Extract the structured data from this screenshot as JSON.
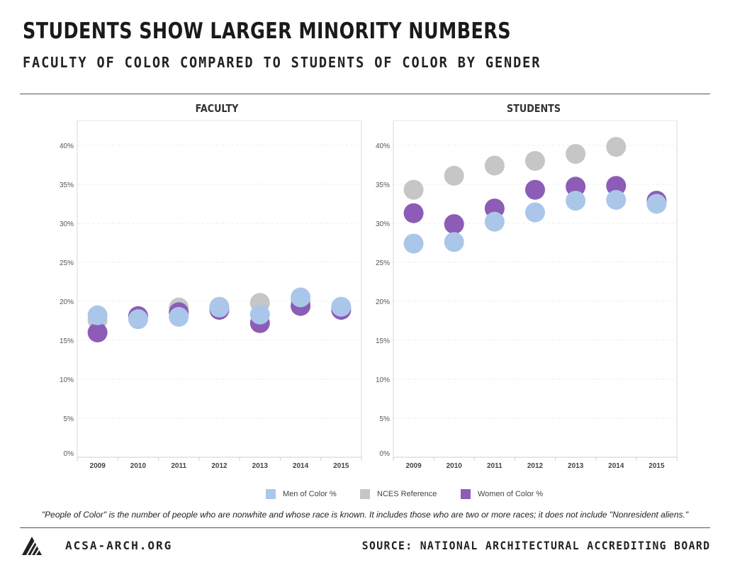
{
  "header": {
    "title": "STUDENTS SHOW LARGER MINORITY NUMBERS",
    "subtitle": "FACULTY OF COLOR COMPARED TO STUDENTS OF COLOR BY GENDER"
  },
  "colors": {
    "men": "#aac7ea",
    "nces": "#c6c6c6",
    "women": "#8c5cb6"
  },
  "chart_data": [
    {
      "type": "scatter",
      "title": "FACULTY",
      "categories": [
        "2009",
        "2010",
        "2011",
        "2012",
        "2013",
        "2014",
        "2015"
      ],
      "ylim": [
        0,
        40
      ],
      "yticks": [
        "0%",
        "5%",
        "10%",
        "15%",
        "20%",
        "25%",
        "30%",
        "35%",
        "40%"
      ],
      "grid": true,
      "series": [
        {
          "name": "NCES Reference",
          "values": [
            17.6,
            18.0,
            19.2,
            19.3,
            19.8,
            20.0,
            19.2
          ]
        },
        {
          "name": "Women of Color %",
          "values": [
            16.0,
            18.1,
            18.6,
            18.9,
            17.2,
            19.4,
            18.9
          ]
        },
        {
          "name": "Men of Color %",
          "values": [
            18.2,
            17.7,
            18.0,
            19.2,
            18.3,
            20.5,
            19.3
          ]
        }
      ]
    },
    {
      "type": "scatter",
      "title": "STUDENTS",
      "categories": [
        "2009",
        "2010",
        "2011",
        "2012",
        "2013",
        "2014",
        "2015"
      ],
      "ylim": [
        0,
        40
      ],
      "yticks": [
        "0%",
        "5%",
        "10%",
        "15%",
        "20%",
        "25%",
        "30%",
        "35%",
        "40%"
      ],
      "grid": true,
      "series": [
        {
          "name": "NCES Reference",
          "values": [
            34.3,
            36.1,
            37.4,
            38.0,
            38.9,
            39.8,
            null
          ]
        },
        {
          "name": "Women of Color %",
          "values": [
            31.3,
            29.9,
            31.9,
            34.3,
            34.7,
            34.8,
            32.9
          ]
        },
        {
          "name": "Men of Color %",
          "values": [
            27.4,
            27.6,
            30.2,
            31.4,
            32.9,
            33.0,
            32.5
          ]
        }
      ]
    }
  ],
  "legend": {
    "men": "Men of Color %",
    "nces": "NCES Reference",
    "women": "Women of Color %"
  },
  "footnote": "\"People of Color\" is the number of people who are nonwhite and whose race is known. It includes those who are two or more races; it does not include \"Nonresident aliens.\"",
  "footer": {
    "site": "ACSA-ARCH.ORG",
    "source": "SOURCE: NATIONAL ARCHITECTURAL ACCREDITING BOARD"
  }
}
